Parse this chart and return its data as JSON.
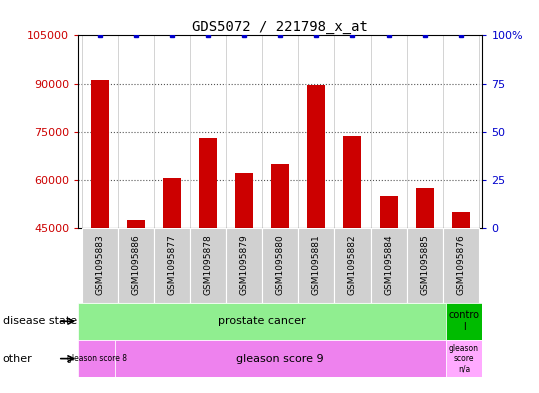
{
  "title": "GDS5072 / 221798_x_at",
  "categories": [
    "GSM1095883",
    "GSM1095886",
    "GSM1095877",
    "GSM1095878",
    "GSM1095879",
    "GSM1095880",
    "GSM1095881",
    "GSM1095882",
    "GSM1095884",
    "GSM1095885",
    "GSM1095876"
  ],
  "counts": [
    91000,
    47500,
    60500,
    73000,
    62000,
    65000,
    89500,
    73500,
    55000,
    57500,
    50000
  ],
  "ylim_left": [
    45000,
    105000
  ],
  "ylim_right": [
    0,
    100
  ],
  "yticks_left": [
    45000,
    60000,
    75000,
    90000,
    105000
  ],
  "yticks_right": [
    0,
    25,
    50,
    75,
    100
  ],
  "bar_color": "#cc0000",
  "dot_color": "#0000cc",
  "bar_width": 0.5,
  "disease_state_green": "#90ee90",
  "control_green": "#00bb00",
  "gleason_purple": "#ee82ee",
  "gleason_na_purple": "#ffaaff",
  "background_color": "#ffffff",
  "plot_bg": "#ffffff",
  "tick_color_left": "#cc0000",
  "tick_color_right": "#0000cc",
  "annotation_row1_label": "disease state",
  "annotation_row2_label": "other",
  "grid_dotted_color": "#555555",
  "separator_color": "#cccccc",
  "xticklabel_bg": "#d0d0d0"
}
